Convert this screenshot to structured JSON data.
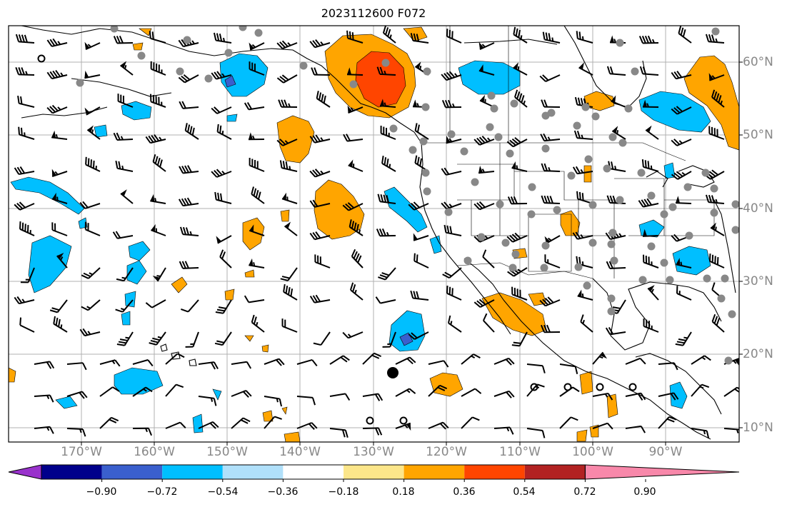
{
  "title": "2023112600 F072",
  "lon_labels": [
    "170°W",
    "160°W",
    "150°W",
    "140°W",
    "130°W",
    "120°W",
    "110°W",
    "100°W",
    "90°W"
  ],
  "lat_labels": [
    "60°N",
    "50°N",
    "40°N",
    "30°N",
    "20°N",
    "10°N"
  ],
  "colorbar": {
    "ticks": [
      "−0.90",
      "−0.72",
      "−0.54",
      "−0.36",
      "−0.18",
      "0.18",
      "0.36",
      "0.54",
      "0.72",
      "0.90"
    ],
    "colors": [
      "#9932cc",
      "#00008b",
      "#3a5fcd",
      "#00bfff",
      "#b0e0fa",
      "#ffffff",
      "#fce68a",
      "#ffa500",
      "#ff4500",
      "#b22222",
      "#f888aa"
    ]
  },
  "colors": {
    "grid": "#b0b0b0",
    "coast": "#000000",
    "station": "#888888"
  }
}
